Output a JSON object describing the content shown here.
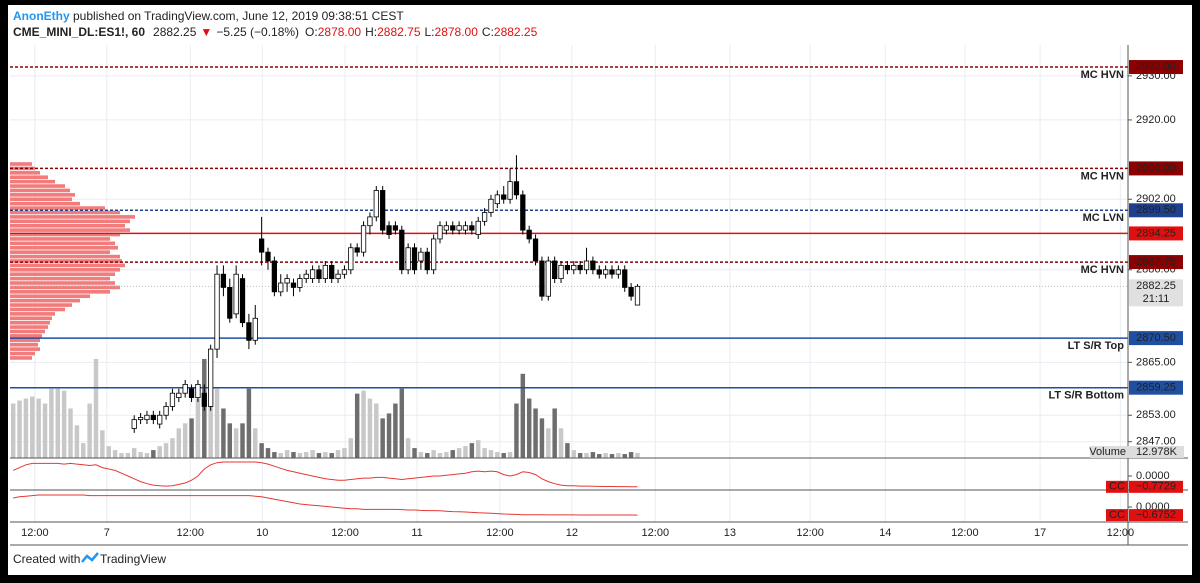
{
  "header": {
    "author": "AnonEthy",
    "published": " published on TradingView.com, June 12, 2019 09:38:51 CEST",
    "symbol": "CME_MINI_DL:ES1!, 60",
    "price": "2882.25",
    "arrow": "▼",
    "change": "−5.25 (−0.18%)",
    "o_label": "O:",
    "o": "2878.00",
    "h_label": "H:",
    "h": "2882.75",
    "l_label": "L:",
    "l": "2878.00",
    "c_label": "C:",
    "c": "2882.25"
  },
  "footer": {
    "created": "Created with",
    "brand": "TradingView"
  },
  "chart_data": {
    "type": "candlestick",
    "up_color": "#ffffff",
    "down_color": "#000000",
    "ylim": [
      2843.3,
      2937
    ],
    "yticks": [
      {
        "value": 2930,
        "label": "2930.00"
      },
      {
        "value": 2920,
        "label": "2920.00"
      },
      {
        "value": 2902,
        "label": "2902.00"
      },
      {
        "value": 2886,
        "label": "2886.00"
      },
      {
        "value": 2865,
        "label": "2865.00"
      },
      {
        "value": 2853,
        "label": "2853.00"
      },
      {
        "value": 2847,
        "label": "2847.00"
      }
    ],
    "xlim": [
      -0.5,
      175
    ],
    "xticks": [
      {
        "value": 3.4,
        "label": "12:00"
      },
      {
        "value": 14.7,
        "label": "7"
      },
      {
        "value": 27.8,
        "label": "12:00"
      },
      {
        "value": 39.1,
        "label": "10"
      },
      {
        "value": 52.1,
        "label": "12:00"
      },
      {
        "value": 63.4,
        "label": "11"
      },
      {
        "value": 76.4,
        "label": "12:00"
      },
      {
        "value": 87.7,
        "label": "12"
      },
      {
        "value": 100.8,
        "label": "12:00"
      },
      {
        "value": 112.5,
        "label": "13"
      },
      {
        "value": 125.1,
        "label": "12:00"
      },
      {
        "value": 136.9,
        "label": "14"
      },
      {
        "value": 149.4,
        "label": "12:00"
      },
      {
        "value": 161.2,
        "label": "17"
      },
      {
        "value": 173.8,
        "label": "12:00"
      }
    ],
    "grid": true,
    "open": [
      null,
      null,
      null,
      null,
      null,
      null,
      null,
      null,
      null,
      null,
      null,
      null,
      null,
      null,
      null,
      null,
      null,
      null,
      null,
      2850,
      2852,
      2852,
      2853,
      2851,
      2853,
      2855,
      2857,
      2858,
      2859,
      2857,
      2858,
      2855,
      2868,
      2885,
      2882,
      2876,
      2884,
      2874,
      2870,
      2893,
      2890,
      2888,
      2881,
      2883,
      2883,
      2882,
      2884,
      2884,
      2886,
      2884,
      2887,
      2884,
      2885,
      2886,
      2891,
      2890,
      2896,
      2898,
      2904,
      2896,
      2896,
      2895,
      2886,
      2891,
      2888,
      2890,
      2886,
      2893,
      2895,
      2896,
      2895,
      2895,
      2896,
      2894,
      2897,
      2899,
      2901,
      2903,
      2902,
      2906,
      2903,
      2895,
      2893,
      2888,
      2880,
      2888,
      2884,
      2887,
      2886,
      2887,
      2886,
      2888,
      2886,
      2885,
      2886,
      2885,
      2886,
      2882,
      2878
    ],
    "high": [
      null,
      null,
      null,
      null,
      null,
      null,
      null,
      null,
      null,
      null,
      null,
      null,
      null,
      null,
      null,
      null,
      null,
      null,
      null,
      2853,
      2853.5,
      2854,
      2854,
      2854,
      2856,
      2859,
      2859,
      2861,
      2860,
      2861,
      2860,
      2869,
      2887,
      2887,
      2884,
      2887,
      2885,
      2876,
      2878,
      2898,
      2891,
      2889,
      2885,
      2885,
      2884,
      2885,
      2886,
      2887,
      2887,
      2888,
      2888,
      2886,
      2887,
      2892,
      2892,
      2897,
      2899,
      2905,
      2905,
      2897,
      2897,
      2896,
      2892,
      2892,
      2891,
      2891,
      2894,
      2897,
      2897,
      2897,
      2897,
      2897,
      2897,
      2898,
      2900,
      2903,
      2904,
      2905,
      2909,
      2912,
      2904,
      2896,
      2894,
      2889,
      2889,
      2889,
      2888,
      2888,
      2888,
      2888,
      2891,
      2889,
      2887,
      2887,
      2887,
      2887,
      2887,
      2883,
      2882.75
    ],
    "low": [
      null,
      null,
      null,
      null,
      null,
      null,
      null,
      null,
      null,
      null,
      null,
      null,
      null,
      null,
      null,
      null,
      null,
      null,
      null,
      2849,
      2851,
      2851,
      2851,
      2850,
      2852,
      2854,
      2856,
      2857,
      2856,
      2856,
      2854,
      2854,
      2866,
      2880,
      2874,
      2875,
      2873,
      2868,
      2869,
      2887,
      2886,
      2880,
      2880,
      2881,
      2880,
      2881,
      2883,
      2883,
      2883,
      2883,
      2883,
      2883,
      2884,
      2885,
      2889,
      2889,
      2894,
      2897,
      2894,
      2893,
      2894,
      2885,
      2885,
      2885,
      2886,
      2885,
      2885,
      2892,
      2894,
      2894,
      2894,
      2894,
      2894,
      2893,
      2896,
      2898,
      2900,
      2901,
      2901,
      2902,
      2894,
      2892,
      2887,
      2879,
      2879,
      2883,
      2883,
      2885,
      2885,
      2885,
      2885,
      2885,
      2884,
      2884,
      2884,
      2884,
      2881,
      2879,
      2878
    ],
    "close": [
      null,
      null,
      null,
      null,
      null,
      null,
      null,
      null,
      null,
      null,
      null,
      null,
      null,
      null,
      null,
      null,
      null,
      null,
      null,
      2852,
      2852.5,
      2853,
      2852,
      2853,
      2855,
      2858,
      2858,
      2860,
      2857,
      2860,
      2855,
      2868,
      2885,
      2882,
      2875,
      2885,
      2874,
      2870,
      2875,
      2890,
      2888,
      2881,
      2883,
      2884,
      2882,
      2884,
      2885,
      2886,
      2884,
      2887,
      2884,
      2885,
      2886,
      2891,
      2890,
      2896,
      2898,
      2904,
      2895,
      2894,
      2895,
      2886,
      2891,
      2886,
      2890,
      2886,
      2893,
      2896,
      2896,
      2895,
      2896,
      2896,
      2895,
      2897,
      2899,
      2902,
      2903,
      2902,
      2906,
      2903,
      2895,
      2893,
      2888,
      2880,
      2888,
      2884,
      2887,
      2886,
      2887,
      2886,
      2888,
      2886,
      2885,
      2886,
      2885,
      2886,
      2882,
      2880,
      2882.25
    ],
    "volume": {
      "name": "Volume",
      "value_label": "12.978K",
      "ylim": [
        0,
        260000
      ],
      "up_color": "#c8c8c8",
      "down_color": "#6e6e6e",
      "values": [
        137500,
        145000,
        150000,
        155000,
        150000,
        137500,
        175000,
        175000,
        170000,
        125000,
        82500,
        37500,
        137500,
        250000,
        70000,
        30000,
        20000,
        12500,
        12500,
        25000,
        15000,
        12500,
        20000,
        30000,
        37500,
        50000,
        75000,
        87500,
        100000,
        150000,
        250000,
        225000,
        175000,
        125000,
        87500,
        75000,
        87500,
        175000,
        75000,
        37500,
        25000,
        15000,
        12500,
        20000,
        15000,
        12500,
        15000,
        20000,
        12500,
        15000,
        12500,
        20000,
        25000,
        50000,
        162500,
        170000,
        150000,
        137500,
        100000,
        112500,
        137500,
        175000,
        50000,
        25000,
        15000,
        12500,
        20000,
        12500,
        15000,
        20000,
        25000,
        30000,
        37500,
        45000,
        25000,
        20000,
        15000,
        12500,
        15000,
        137500,
        212500,
        150000,
        125000,
        100000,
        75000,
        125000,
        75000,
        37500,
        20000,
        12500,
        12500,
        15000,
        10000,
        12500,
        10000,
        12500,
        10000,
        15000,
        12978
      ]
    },
    "volume_profile": {
      "color": "#f27b7b",
      "prices": [
        2910,
        2909,
        2908,
        2907,
        2906,
        2905,
        2904,
        2903,
        2902,
        2901,
        2900,
        2899,
        2898,
        2897,
        2896,
        2895,
        2894,
        2893,
        2892,
        2891,
        2890,
        2889,
        2888,
        2887,
        2886,
        2885,
        2884,
        2883,
        2882,
        2881,
        2880,
        2879,
        2878,
        2877,
        2876,
        2875,
        2874,
        2873,
        2872,
        2871,
        2870,
        2869,
        2868,
        2867,
        2866
      ],
      "values": [
        22,
        25,
        30,
        38,
        45,
        55,
        60,
        65,
        62,
        70,
        95,
        110,
        125,
        120,
        115,
        120,
        110,
        100,
        105,
        108,
        100,
        110,
        112,
        115,
        110,
        105,
        100,
        105,
        110,
        100,
        80,
        70,
        62,
        55,
        45,
        42,
        40,
        38,
        35,
        32,
        30,
        28,
        30,
        25,
        22
      ]
    },
    "levels": [
      {
        "value": 2932,
        "label": "2932.00",
        "text": "MC HVN",
        "color": "#8b0000",
        "dashed": true
      },
      {
        "value": 2909,
        "label": "2909.00",
        "text": "MC HVN",
        "color": "#8b0000",
        "dashed": true
      },
      {
        "value": 2899.5,
        "label": "2899.50",
        "text": "MC LVN",
        "color": "#1f3f8f",
        "dashed": true
      },
      {
        "value": 2894.25,
        "label": "2894.25",
        "color": "#e01010",
        "dashed": false
      },
      {
        "value": 2887.75,
        "label": "2887.75",
        "text": "MC HVN",
        "color": "#8b0000",
        "dashed": true
      },
      {
        "value": 2870.5,
        "label": "2870.50",
        "text": "LT S/R Top",
        "color": "#1f4fa0",
        "dashed": false
      },
      {
        "value": 2859.25,
        "label": "2859.25",
        "text": "LT S/R Bottom",
        "color": "#1f4fa0",
        "dashed": false
      }
    ],
    "last_price": {
      "value": 2882.25,
      "label": "2882.25",
      "countdown": "21:11"
    },
    "indicators": [
      {
        "name": "CC",
        "color": "#e53935",
        "ylim": [
          -1,
          1
        ],
        "yticks": [
          {
            "value": 0,
            "label": "0.0000"
          }
        ],
        "value_label": "−0.7729",
        "values": [
          0.4,
          0.6,
          0.8,
          0.9,
          0.9,
          0.9,
          0.9,
          0.9,
          0.85,
          0.9,
          0.85,
          0.8,
          0.75,
          0.8,
          0.6,
          0.5,
          0.4,
          0.2,
          0,
          -0.2,
          -0.4,
          -0.55,
          -0.65,
          -0.7,
          -0.72,
          -0.7,
          -0.6,
          -0.5,
          -0.3,
          0,
          0.5,
          0.8,
          0.95,
          1,
          1,
          1,
          1,
          1,
          1,
          0.95,
          0.85,
          0.7,
          0.55,
          0.4,
          0.3,
          0.2,
          0.1,
          0,
          -0.1,
          -0.2,
          -0.25,
          -0.3,
          -0.3,
          -0.25,
          -0.2,
          -0.15,
          -0.15,
          -0.1,
          -0.1,
          -0.15,
          -0.2,
          -0.25,
          -0.2,
          -0.15,
          -0.1,
          -0.05,
          0,
          0,
          0.05,
          0.1,
          0.15,
          0.2,
          0.3,
          0.35,
          0.3,
          0.35,
          0.3,
          0.1,
          0,
          0.1,
          0.3,
          0.25,
          0.1,
          -0.2,
          -0.4,
          -0.55,
          -0.65,
          -0.7,
          -0.7,
          -0.72,
          -0.72,
          -0.73,
          -0.74,
          -0.75,
          -0.75,
          -0.76,
          -0.76,
          -0.77,
          -0.7729
        ]
      },
      {
        "name": "CC",
        "color": "#e53935",
        "ylim": [
          -1.25,
          1.25
        ],
        "yticks": [
          {
            "value": 0,
            "label": "0.0000"
          }
        ],
        "value_label": "−0.6752",
        "values": [
          0.75,
          0.85,
          0.9,
          0.95,
          1,
          1,
          1,
          1,
          1,
          1,
          1,
          1,
          0.95,
          0.95,
          0.95,
          0.95,
          0.95,
          0.95,
          0.95,
          0.95,
          0.95,
          0.95,
          0.95,
          0.95,
          0.95,
          0.95,
          0.95,
          0.95,
          0.95,
          0.95,
          0.95,
          0.95,
          0.95,
          0.95,
          0.95,
          0.95,
          0.95,
          0.95,
          0.9,
          0.85,
          0.75,
          0.65,
          0.55,
          0.45,
          0.35,
          0.25,
          0.2,
          0.15,
          0.1,
          0.05,
          0,
          -0.05,
          -0.1,
          -0.15,
          -0.15,
          -0.2,
          -0.2,
          -0.2,
          -0.2,
          -0.2,
          -0.2,
          -0.22,
          -0.25,
          -0.25,
          -0.28,
          -0.3,
          -0.3,
          -0.32,
          -0.35,
          -0.38,
          -0.4,
          -0.42,
          -0.45,
          -0.48,
          -0.5,
          -0.52,
          -0.55,
          -0.58,
          -0.6,
          -0.62,
          -0.64,
          -0.65,
          -0.65,
          -0.65,
          -0.66,
          -0.66,
          -0.66,
          -0.66,
          -0.66,
          -0.67,
          -0.67,
          -0.67,
          -0.67,
          -0.67,
          -0.67,
          -0.67,
          -0.67,
          -0.67,
          -0.6752
        ]
      }
    ]
  }
}
